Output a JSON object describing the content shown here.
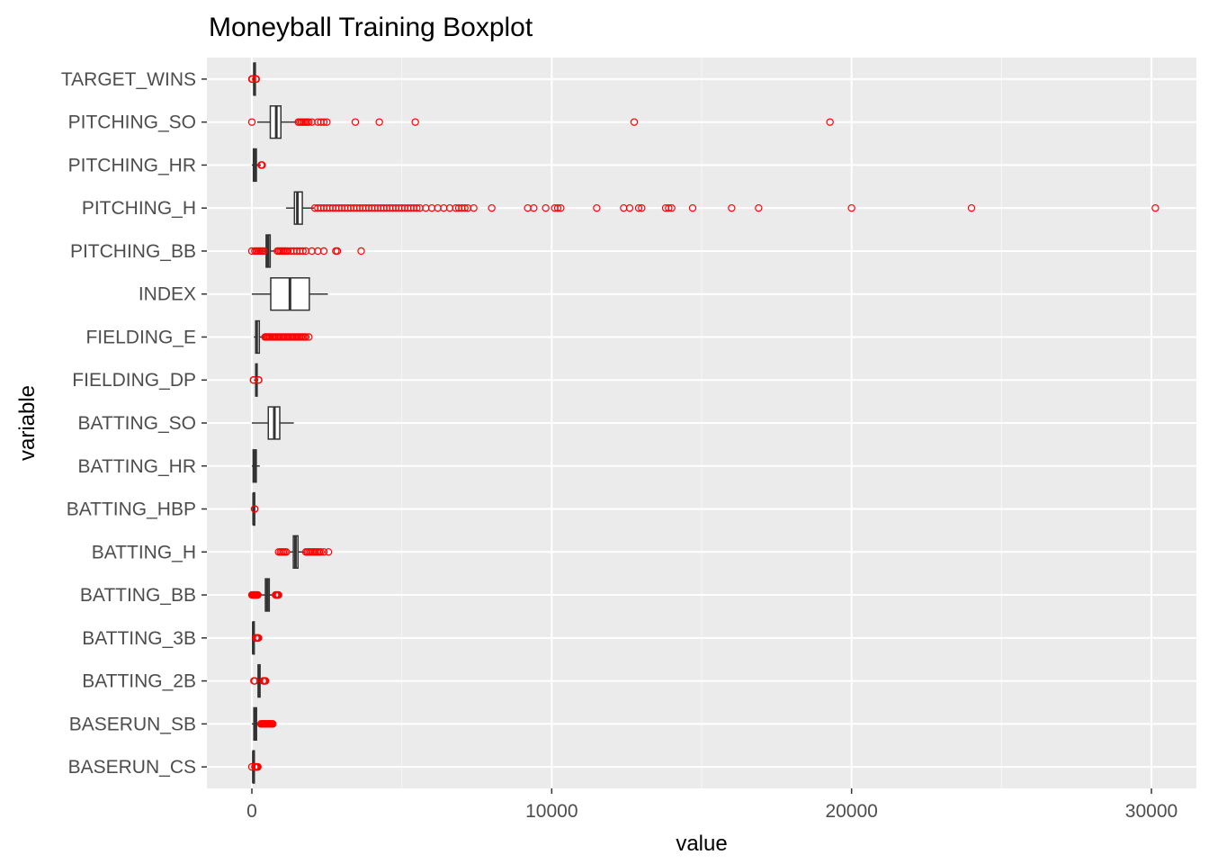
{
  "chart_data": {
    "type": "boxplot",
    "orientation": "horizontal",
    "title": "Moneyball Training Boxplot",
    "xlabel": "value",
    "ylabel": "variable",
    "xlim": [
      -1500,
      31500
    ],
    "x_ticks": [
      0,
      10000,
      20000,
      30000
    ],
    "x_tick_labels": [
      "0",
      "10000",
      "20000",
      "30000"
    ],
    "grid": true,
    "legend": "none",
    "outlier_color": "#ff0000",
    "box_fill": "#ffffff",
    "box_stroke": "#333333",
    "panel_color": "#ebebeb",
    "series": [
      {
        "name": "TARGET_WINS",
        "whisker_low": 21,
        "q1": 71,
        "median": 82,
        "q3": 92,
        "whisker_high": 124,
        "outliers": [
          0,
          12,
          14,
          17,
          130,
          135,
          146
        ]
      },
      {
        "name": "PITCHING_SO",
        "whisker_low": 180,
        "q1": 615,
        "median": 814,
        "q3": 968,
        "whisker_high": 1490,
        "outliers": [
          0,
          1550,
          1600,
          1650,
          1700,
          1750,
          1800,
          1850,
          1900,
          2000,
          2200,
          2300,
          2400,
          2500,
          3450,
          4250,
          5450,
          12750,
          19280
        ]
      },
      {
        "name": "PITCHING_HR",
        "whisker_low": 0,
        "q1": 50,
        "median": 107,
        "q3": 150,
        "whisker_high": 300,
        "outliers": [
          310,
          320,
          330,
          343
        ]
      },
      {
        "name": "PITCHING_H",
        "whisker_low": 1137,
        "q1": 1419,
        "median": 1518,
        "q3": 1682,
        "whisker_high": 2070,
        "outliers": [
          2100,
          2200,
          2300,
          2400,
          2500,
          2600,
          2700,
          2800,
          2900,
          3000,
          3100,
          3200,
          3300,
          3400,
          3500,
          3600,
          3700,
          3800,
          3900,
          4000,
          4100,
          4200,
          4300,
          4400,
          4500,
          4600,
          4700,
          4800,
          4900,
          5000,
          5100,
          5200,
          5300,
          5400,
          5500,
          5600,
          5800,
          6000,
          6200,
          6400,
          6600,
          6800,
          6900,
          7000,
          7100,
          7200,
          7400,
          8000,
          9200,
          9400,
          9800,
          10100,
          10200,
          10300,
          11500,
          12400,
          12600,
          12900,
          13000,
          13800,
          13900,
          14000,
          14700,
          16000,
          16900,
          20000,
          24000,
          30132
        ]
      },
      {
        "name": "PITCHING_BB",
        "whisker_low": 119,
        "q1": 476,
        "median": 536,
        "q3": 611,
        "whisker_high": 812,
        "outliers": [
          0,
          100,
          150,
          200,
          250,
          300,
          350,
          400,
          850,
          900,
          950,
          1000,
          1050,
          1100,
          1150,
          1200,
          1300,
          1400,
          1500,
          1600,
          1700,
          1800,
          2000,
          2200,
          2400,
          2800,
          2850,
          3645
        ]
      },
      {
        "name": "INDEX",
        "whisker_low": 1,
        "q1": 630,
        "median": 1270,
        "q3": 1916,
        "whisker_high": 2535,
        "outliers": []
      },
      {
        "name": "FIELDING_E",
        "whisker_low": 65,
        "q1": 127,
        "median": 159,
        "q3": 249,
        "whisker_high": 430,
        "outliers": [
          440,
          480,
          520,
          560,
          600,
          650,
          700,
          750,
          800,
          850,
          900,
          950,
          1000,
          1050,
          1100,
          1150,
          1200,
          1250,
          1300,
          1350,
          1400,
          1450,
          1500,
          1550,
          1600,
          1650,
          1700,
          1750,
          1800,
          1898
        ]
      },
      {
        "name": "FIELDING_DP",
        "whisker_low": 68,
        "q1": 131,
        "median": 149,
        "q3": 164,
        "whisker_high": 214,
        "outliers": [
          52,
          60,
          220,
          228
        ]
      },
      {
        "name": "BATTING_SO",
        "whisker_low": 0,
        "q1": 548,
        "median": 750,
        "q3": 930,
        "whisker_high": 1399,
        "outliers": []
      },
      {
        "name": "BATTING_HR",
        "whisker_low": 0,
        "q1": 42,
        "median": 102,
        "q3": 147,
        "whisker_high": 264,
        "outliers": []
      },
      {
        "name": "BATTING_HBP",
        "whisker_low": 29,
        "q1": 50,
        "median": 58,
        "q3": 67,
        "whisker_high": 95,
        "outliers": [
          90,
          95
        ]
      },
      {
        "name": "BATTING_H",
        "whisker_low": 1257,
        "q1": 1383,
        "median": 1454,
        "q3": 1537,
        "whisker_high": 1766,
        "outliers": [
          891,
          950,
          1000,
          1050,
          1100,
          1150,
          1800,
          1850,
          1900,
          1950,
          2000,
          2050,
          2100,
          2150,
          2200,
          2250,
          2300,
          2400,
          2554
        ]
      },
      {
        "name": "BATTING_BB",
        "whisker_low": 206,
        "q1": 451,
        "median": 512,
        "q3": 580,
        "whisker_high": 775,
        "outliers": [
          0,
          20,
          40,
          60,
          80,
          100,
          120,
          140,
          160,
          180,
          200,
          790,
          810,
          830,
          850,
          870,
          890
        ]
      },
      {
        "name": "BATTING_3B",
        "whisker_low": 0,
        "q1": 34,
        "median": 47,
        "q3": 72,
        "whisker_high": 128,
        "outliers": [
          135,
          150,
          170,
          190,
          210,
          223
        ]
      },
      {
        "name": "BATTING_2B",
        "whisker_low": 160,
        "q1": 208,
        "median": 238,
        "q3": 273,
        "whisker_high": 370,
        "outliers": [
          69,
          100,
          380,
          400,
          420,
          440,
          458
        ]
      },
      {
        "name": "BASERUN_SB",
        "whisker_low": 0,
        "q1": 66,
        "median": 101,
        "q3": 156,
        "whisker_high": 290,
        "outliers": [
          300,
          330,
          360,
          390,
          420,
          450,
          480,
          510,
          540,
          570,
          600,
          630,
          660,
          697
        ]
      },
      {
        "name": "BASERUN_CS",
        "whisker_low": 0,
        "q1": 38,
        "median": 49,
        "q3": 62,
        "whisker_high": 98,
        "outliers": [
          0,
          100,
          120,
          140,
          160,
          180,
          201
        ]
      }
    ]
  }
}
